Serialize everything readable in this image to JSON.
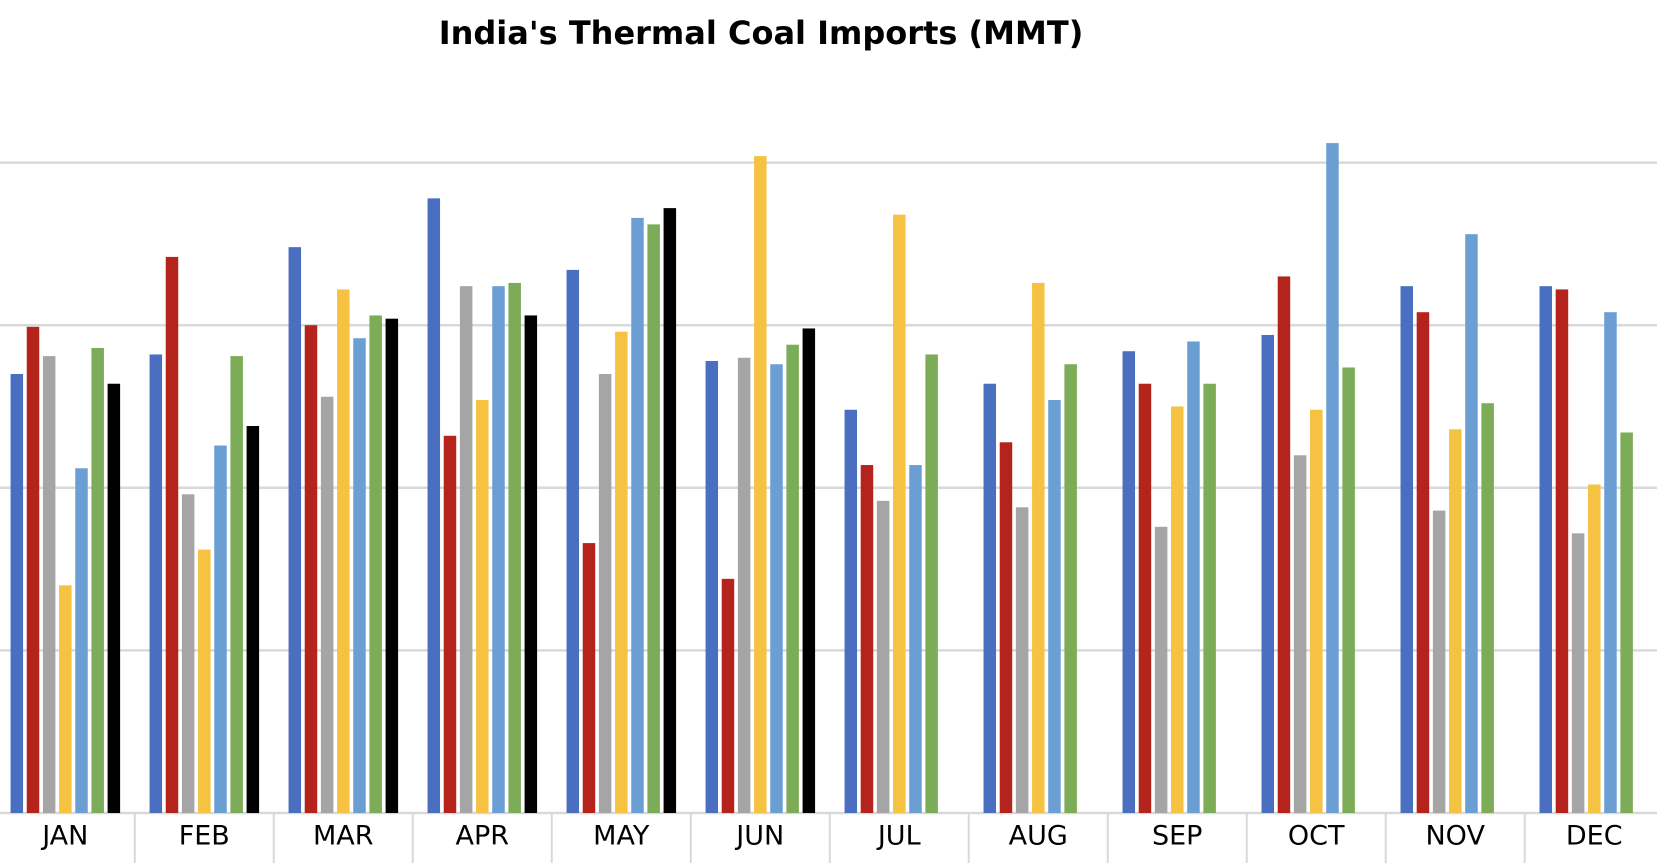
{
  "chart_data": {
    "type": "bar",
    "title": "India's Thermal Coal Imports (MMT)",
    "categories": [
      "JAN",
      "FEB",
      "MAR",
      "APR",
      "MAY",
      "JUN",
      "JUL",
      "AUG",
      "SEP",
      "OCT",
      "NOV",
      "DEC"
    ],
    "ylim": [
      0,
      25
    ],
    "yticks": [
      0,
      5,
      10,
      15,
      20
    ],
    "grid": true,
    "series": [
      {
        "color": "#4a6fc0",
        "values": [
          13.5,
          14.1,
          17.4,
          18.9,
          16.7,
          13.9,
          12.4,
          13.2,
          14.2,
          14.7,
          16.2,
          16.2
        ]
      },
      {
        "color": "#b5241c",
        "values": [
          14.95,
          17.1,
          15.0,
          11.6,
          8.3,
          7.2,
          10.7,
          11.4,
          13.2,
          16.5,
          15.4,
          16.1
        ]
      },
      {
        "color": "#a5a5a5",
        "values": [
          14.05,
          9.8,
          12.8,
          16.2,
          13.5,
          14.0,
          9.6,
          9.4,
          8.8,
          11.0,
          9.3,
          8.6
        ]
      },
      {
        "color": "#f5c242",
        "values": [
          7.0,
          8.1,
          16.1,
          12.7,
          14.8,
          20.2,
          18.4,
          16.3,
          12.5,
          12.4,
          11.8,
          10.1
        ]
      },
      {
        "color": "#6b9fd4",
        "values": [
          10.6,
          11.3,
          14.6,
          16.2,
          18.3,
          13.8,
          10.7,
          12.7,
          14.5,
          20.6,
          17.8,
          15.4
        ]
      },
      {
        "color": "#7cac57",
        "values": [
          14.3,
          14.05,
          15.3,
          16.3,
          18.1,
          14.4,
          14.1,
          13.8,
          13.2,
          13.7,
          12.6,
          11.7
        ]
      },
      {
        "color": "#000000",
        "values": [
          13.2,
          11.9,
          15.2,
          15.3,
          18.6,
          14.9,
          null,
          null,
          null,
          null,
          null,
          null
        ]
      }
    ]
  }
}
